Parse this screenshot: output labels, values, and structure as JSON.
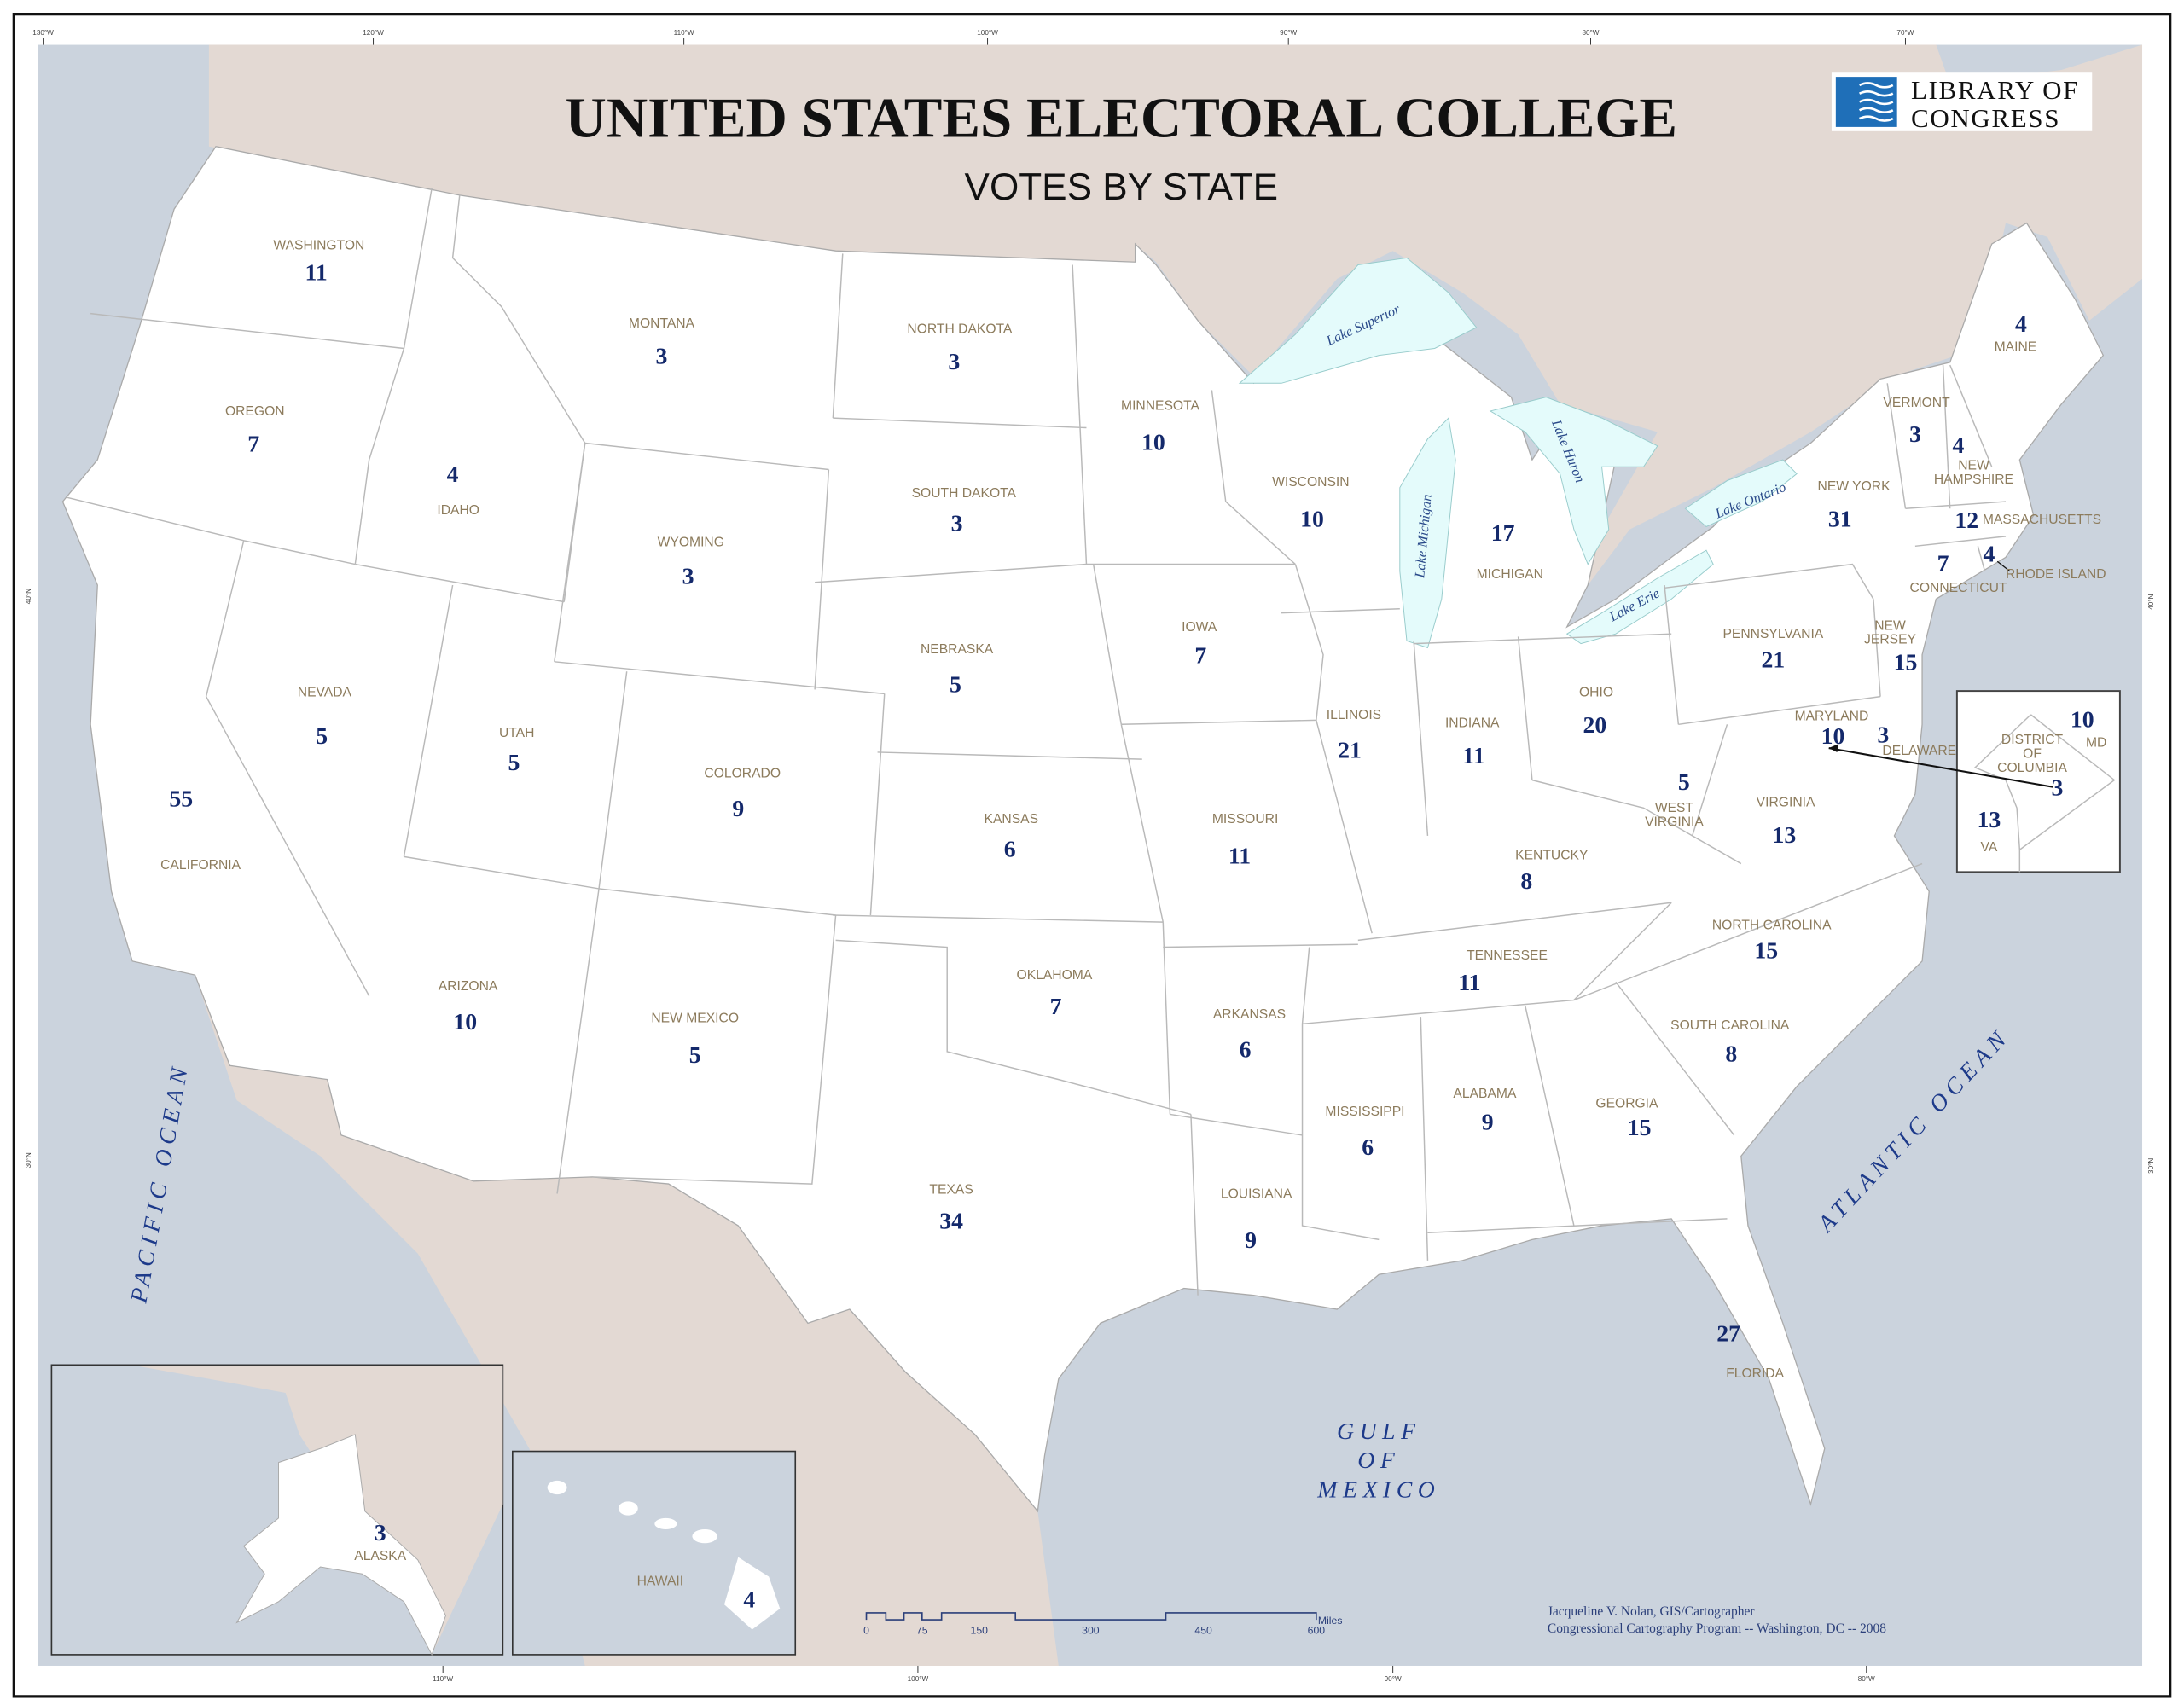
{
  "header": {
    "title": "UNITED STATES ELECTORAL COLLEGE",
    "subtitle": "VOTES BY STATE",
    "logo_line1": "LIBRARY OF",
    "logo_line2": "CONGRESS"
  },
  "colors": {
    "water": "#cbd3dd",
    "foreign_land": "#e3d9d3",
    "us_land": "#ffffff",
    "lakes": "#e4fbfb",
    "votes": "#14296b",
    "state_names": "#8c7b5c"
  },
  "graticule": {
    "top": [
      "130°W",
      "120°W",
      "110°W",
      "100°W",
      "90°W",
      "80°W",
      "70°W"
    ],
    "bottom": [
      "110°W",
      "100°W",
      "90°W",
      "80°W"
    ],
    "left": [
      "40°N",
      "30°N"
    ],
    "right": [
      "40°N",
      "30°N"
    ]
  },
  "states": [
    {
      "label_lines": [
        "WASHINGTON"
      ],
      "votes": "11"
    },
    {
      "label_lines": [
        "OREGON"
      ],
      "votes": "7"
    },
    {
      "label_lines": [
        "CALIFORNIA"
      ],
      "votes": "55"
    },
    {
      "label_lines": [
        "NEVADA"
      ],
      "votes": "5"
    },
    {
      "label_lines": [
        "IDAHO"
      ],
      "votes": "4"
    },
    {
      "label_lines": [
        "MONTANA"
      ],
      "votes": "3"
    },
    {
      "label_lines": [
        "WYOMING"
      ],
      "votes": "3"
    },
    {
      "label_lines": [
        "UTAH"
      ],
      "votes": "5"
    },
    {
      "label_lines": [
        "ARIZONA"
      ],
      "votes": "10"
    },
    {
      "label_lines": [
        "COLORADO"
      ],
      "votes": "9"
    },
    {
      "label_lines": [
        "NEW MEXICO"
      ],
      "votes": "5"
    },
    {
      "label_lines": [
        "NORTH DAKOTA"
      ],
      "votes": "3"
    },
    {
      "label_lines": [
        "SOUTH DAKOTA"
      ],
      "votes": "3"
    },
    {
      "label_lines": [
        "NEBRASKA"
      ],
      "votes": "5"
    },
    {
      "label_lines": [
        "KANSAS"
      ],
      "votes": "6"
    },
    {
      "label_lines": [
        "OKLAHOMA"
      ],
      "votes": "7"
    },
    {
      "label_lines": [
        "TEXAS"
      ],
      "votes": "34"
    },
    {
      "label_lines": [
        "MINNESOTA"
      ],
      "votes": "10"
    },
    {
      "label_lines": [
        "IOWA"
      ],
      "votes": "7"
    },
    {
      "label_lines": [
        "MISSOURI"
      ],
      "votes": "11"
    },
    {
      "label_lines": [
        "ARKANSAS"
      ],
      "votes": "6"
    },
    {
      "label_lines": [
        "LOUISIANA"
      ],
      "votes": "9"
    },
    {
      "label_lines": [
        "WISCONSIN"
      ],
      "votes": "10"
    },
    {
      "label_lines": [
        "ILLINOIS"
      ],
      "votes": "21"
    },
    {
      "label_lines": [
        "MICHIGAN"
      ],
      "votes": "17"
    },
    {
      "label_lines": [
        "INDIANA"
      ],
      "votes": "11"
    },
    {
      "label_lines": [
        "OHIO"
      ],
      "votes": "20"
    },
    {
      "label_lines": [
        "KENTUCKY"
      ],
      "votes": "8"
    },
    {
      "label_lines": [
        "TENNESSEE"
      ],
      "votes": "11"
    },
    {
      "label_lines": [
        "MISSISSIPPI"
      ],
      "votes": "6"
    },
    {
      "label_lines": [
        "ALABAMA"
      ],
      "votes": "9"
    },
    {
      "label_lines": [
        "GEORGIA"
      ],
      "votes": "15"
    },
    {
      "label_lines": [
        "FLORIDA"
      ],
      "votes": "27"
    },
    {
      "label_lines": [
        "SOUTH CAROLINA"
      ],
      "votes": "8"
    },
    {
      "label_lines": [
        "NORTH CAROLINA"
      ],
      "votes": "15"
    },
    {
      "label_lines": [
        "VIRGINIA"
      ],
      "votes": "13"
    },
    {
      "label_lines": [
        "WEST",
        "VIRGINIA"
      ],
      "votes": "5"
    },
    {
      "label_lines": [
        "MARYLAND"
      ],
      "votes": "10"
    },
    {
      "label_lines": [
        "DELAWARE"
      ],
      "votes": "3"
    },
    {
      "label_lines": [
        "NEW",
        "JERSEY"
      ],
      "votes": "15"
    },
    {
      "label_lines": [
        "PENNSYLVANIA"
      ],
      "votes": "21"
    },
    {
      "label_lines": [
        "NEW YORK"
      ],
      "votes": "31"
    },
    {
      "label_lines": [
        "CONNECTICUT"
      ],
      "votes": "7"
    },
    {
      "label_lines": [
        "RHODE ISLAND"
      ],
      "votes": "4"
    },
    {
      "label_lines": [
        "MASSACHUSETTS"
      ],
      "votes": "12"
    },
    {
      "label_lines": [
        "VERMONT"
      ],
      "votes": "3"
    },
    {
      "label_lines": [
        "NEW",
        "HAMPSHIRE"
      ],
      "votes": "4"
    },
    {
      "label_lines": [
        "MAINE"
      ],
      "votes": "4"
    },
    {
      "label_lines": [
        "ALASKA"
      ],
      "votes": "3"
    },
    {
      "label_lines": [
        "HAWAII"
      ],
      "votes": "4"
    }
  ],
  "dc_inset": {
    "dc_lines": [
      "DISTRICT",
      "OF",
      "COLUMBIA"
    ],
    "dc_votes": "3",
    "md_label": "MD",
    "md_votes": "10",
    "va_label": "VA",
    "va_votes": "13"
  },
  "water_labels": {
    "pacific": "PACIFIC OCEAN",
    "atlantic": "ATLANTIC OCEAN",
    "gulf_lines": [
      "GULF",
      "OF",
      "MEXICO"
    ],
    "lake_superior": "Lake Superior",
    "lake_michigan": "Lake Michigan",
    "lake_huron": "Lake Huron",
    "lake_erie": "Lake Erie",
    "lake_ontario": "Lake Ontario"
  },
  "scale_bar": {
    "ticks": [
      "0",
      "75",
      "150",
      "300",
      "450",
      "600"
    ],
    "unit": "Miles"
  },
  "credits": {
    "line1": "Jacqueline V. Nolan, GIS/Cartographer",
    "line2": "Congressional Cartography Program -- Washington, DC -- 2008"
  }
}
